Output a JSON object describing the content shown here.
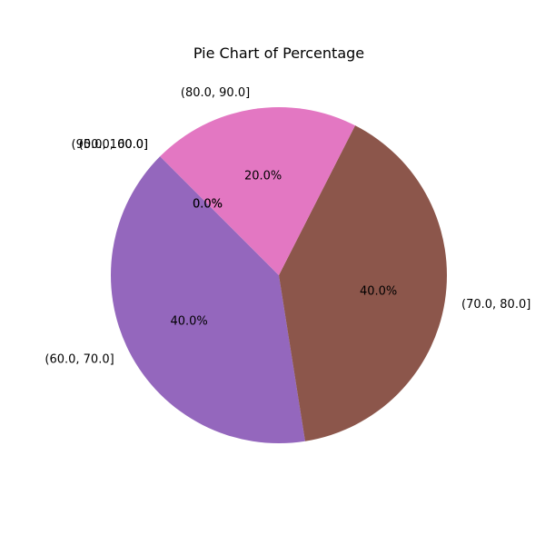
{
  "chart_data": {
    "type": "pie",
    "title": "Pie Chart of Percentage",
    "slices": [
      {
        "label": "(50.0, 60.0]",
        "value": 0.0,
        "pct_label": "0.0%",
        "color": "#9467bd"
      },
      {
        "label": "(60.0, 70.0]",
        "value": 40.0,
        "pct_label": "40.0%",
        "color": "#9467bd"
      },
      {
        "label": "(70.0, 80.0]",
        "value": 40.0,
        "pct_label": "40.0%",
        "color": "#8c564b"
      },
      {
        "label": "(80.0, 90.0]",
        "value": 20.0,
        "pct_label": "20.0%",
        "color": "#e377c2"
      },
      {
        "label": "(90.0, 100.0]",
        "value": 0.0,
        "pct_label": "0.0%",
        "color": "#7f7f7f"
      }
    ],
    "start_angle_deg": 135,
    "direction": "counterclockwise",
    "legend": "none"
  }
}
